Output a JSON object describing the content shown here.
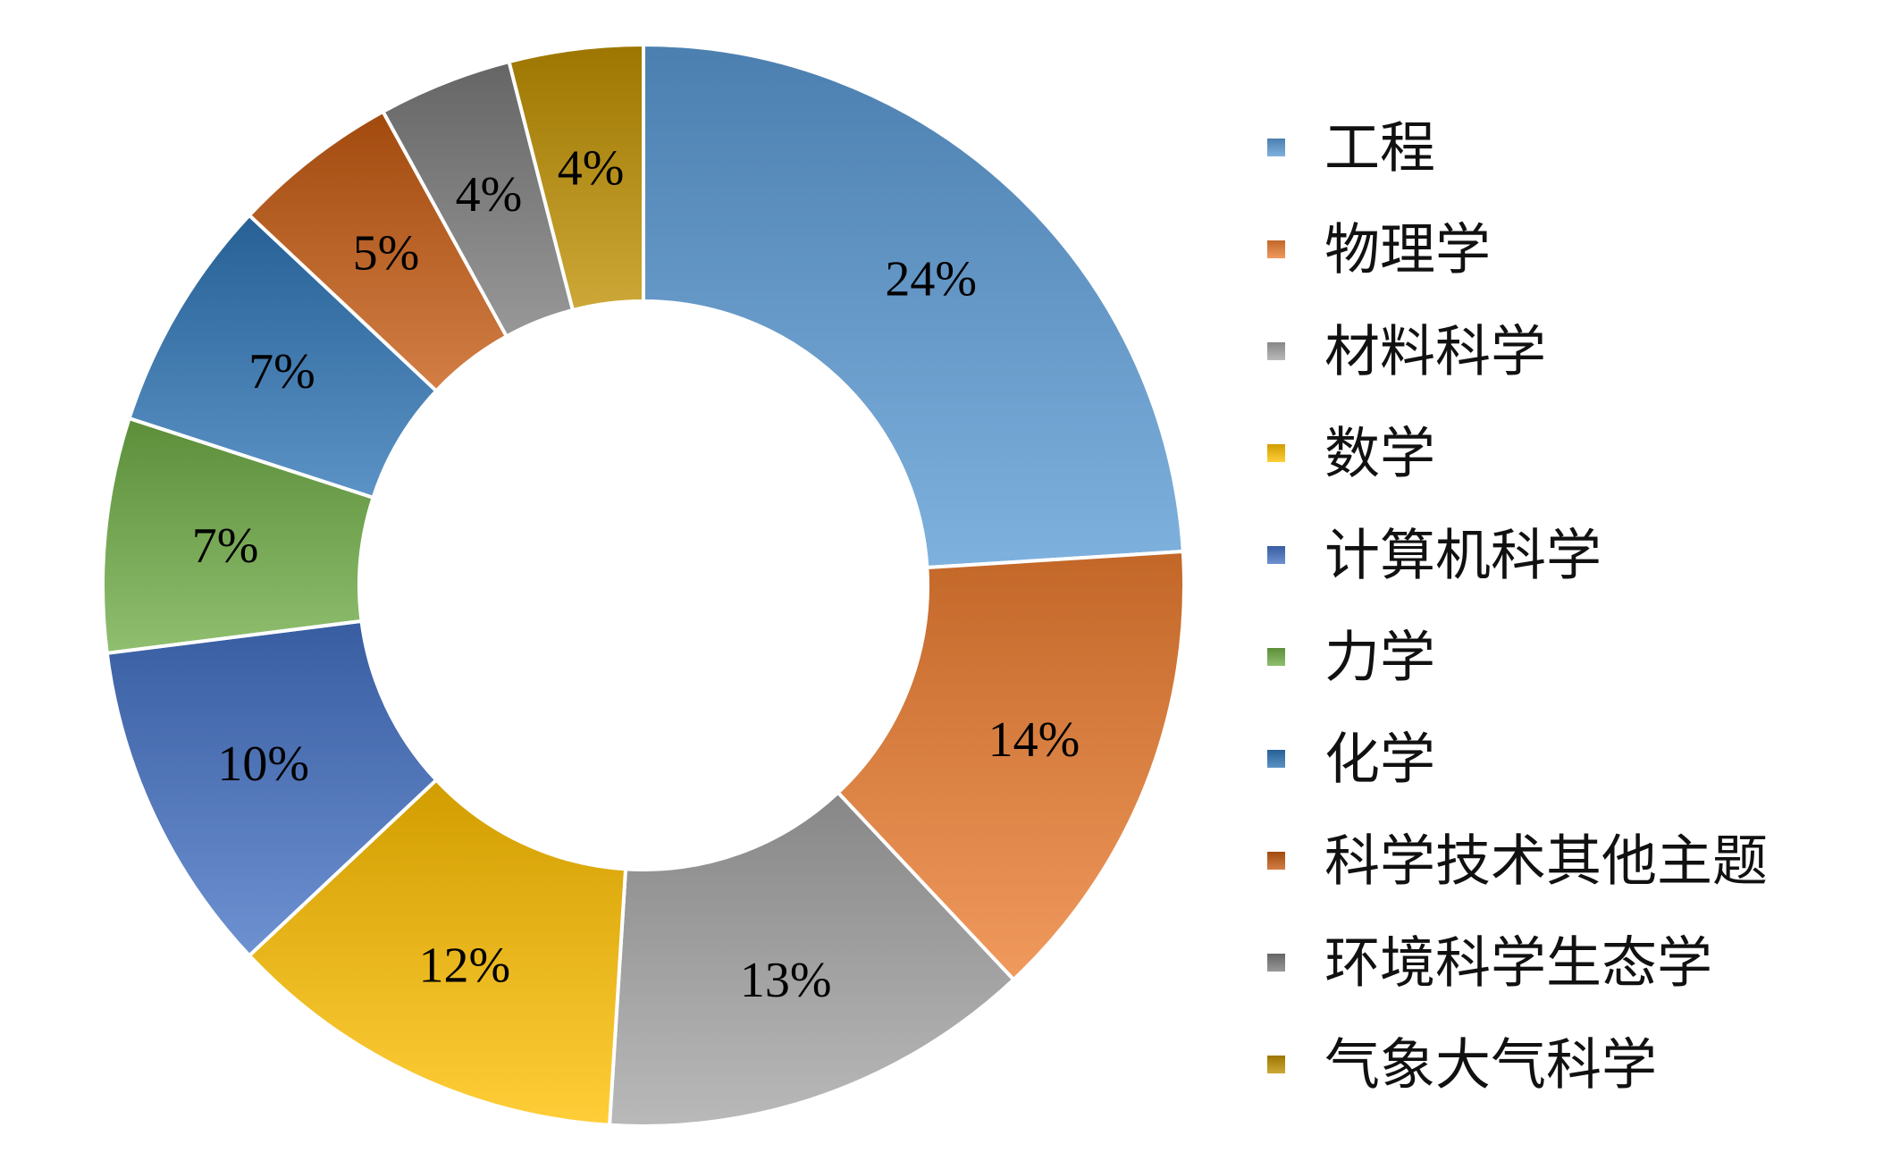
{
  "chart_data": {
    "type": "pie",
    "variant": "donut",
    "title": "",
    "legend_position": "right",
    "slices": [
      {
        "label": "工程",
        "value": 24,
        "display": "24%",
        "color": "#5b9bd5"
      },
      {
        "label": "物理学",
        "value": 14,
        "display": "14%",
        "color": "#ed7d31"
      },
      {
        "label": "材料科学",
        "value": 13,
        "display": "13%",
        "color": "#a5a5a5"
      },
      {
        "label": "数学",
        "value": 12,
        "display": "12%",
        "color": "#ffc000"
      },
      {
        "label": "计算机科学",
        "value": 10,
        "display": "10%",
        "color": "#4472c4"
      },
      {
        "label": "力学",
        "value": 7,
        "display": "7%",
        "color": "#70ad47"
      },
      {
        "label": "化学",
        "value": 7,
        "display": "7%",
        "color": "#2e75b6"
      },
      {
        "label": "科学技术其他主题",
        "value": 5,
        "display": "5%",
        "color": "#c55a11"
      },
      {
        "label": "环境科学生态学",
        "value": 4,
        "display": "4%",
        "color": "#7b7b7b"
      },
      {
        "label": "气象大气科学",
        "value": 4,
        "display": "4%",
        "color": "#bf9000"
      }
    ]
  }
}
